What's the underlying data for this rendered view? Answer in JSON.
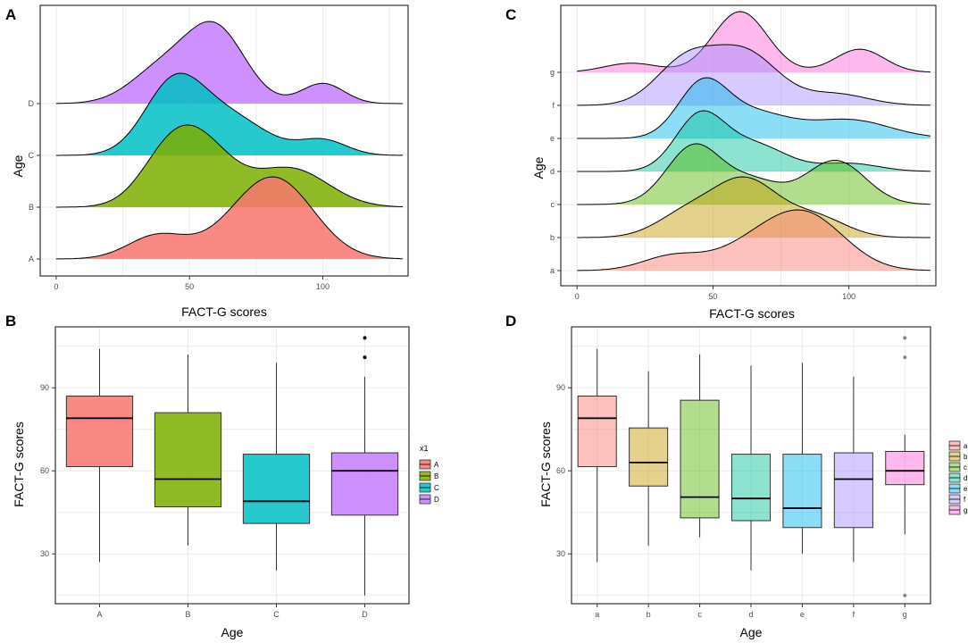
{
  "chart_data": [
    {
      "panel": "A",
      "type": "ridgeline",
      "xlabel": "FACT-G scores",
      "ylabel": "Age",
      "xlim": [
        -6,
        132
      ],
      "xticks": [
        0,
        50,
        100
      ],
      "groups": [
        {
          "name": "A",
          "color": "#F8766D",
          "peaks": [
            [
              38,
              0.35,
              11
            ],
            [
              84,
              1.0,
              14
            ],
            [
              70,
              0.35,
              14
            ]
          ]
        },
        {
          "name": "B",
          "color": "#7CAE00",
          "peaks": [
            [
              52,
              1.0,
              13
            ],
            [
              88,
              0.55,
              14
            ],
            [
              40,
              0.3,
              10
            ]
          ]
        },
        {
          "name": "C",
          "color": "#00BFC4",
          "peaks": [
            [
              44,
              1.0,
              11
            ],
            [
              65,
              0.55,
              14
            ],
            [
              100,
              0.22,
              9
            ]
          ]
        },
        {
          "name": "D",
          "color": "#C77CFF",
          "peaks": [
            [
              60,
              1.0,
              11
            ],
            [
              40,
              0.48,
              12
            ],
            [
              100,
              0.28,
              8
            ]
          ]
        }
      ]
    },
    {
      "panel": "C",
      "type": "ridgeline",
      "xlabel": "FACT-G scores",
      "ylabel": "Age",
      "xlim": [
        -6,
        132
      ],
      "xticks": [
        0,
        50,
        100
      ],
      "groups": [
        {
          "name": "a",
          "color": "#F8766D",
          "peaks": [
            [
              35,
              0.28,
              11
            ],
            [
              85,
              1.0,
              14
            ],
            [
              65,
              0.45,
              14
            ]
          ]
        },
        {
          "name": "b",
          "color": "#C49A00",
          "peaks": [
            [
              62,
              1.0,
              12
            ],
            [
              40,
              0.4,
              11
            ],
            [
              88,
              0.35,
              11
            ]
          ]
        },
        {
          "name": "c",
          "color": "#53B400",
          "peaks": [
            [
              43,
              1.0,
              10
            ],
            [
              95,
              0.75,
              11
            ],
            [
              65,
              0.38,
              10
            ]
          ]
        },
        {
          "name": "d",
          "color": "#00C094",
          "peaks": [
            [
              45,
              1.0,
              9
            ],
            [
              65,
              0.5,
              12
            ],
            [
              100,
              0.15,
              11
            ]
          ]
        },
        {
          "name": "e",
          "color": "#00B6EB",
          "peaks": [
            [
              46,
              1.0,
              9
            ],
            [
              65,
              0.48,
              13
            ],
            [
              100,
              0.36,
              15
            ]
          ]
        },
        {
          "name": "f",
          "color": "#A58AFF",
          "peaks": [
            [
              40,
              0.85,
              11
            ],
            [
              62,
              1.0,
              12
            ],
            [
              95,
              0.22,
              12
            ]
          ]
        },
        {
          "name": "g",
          "color": "#FB61D7",
          "peaks": [
            [
              60,
              1.0,
              10
            ],
            [
              104,
              0.38,
              9
            ],
            [
              20,
              0.15,
              10
            ]
          ]
        }
      ]
    },
    {
      "panel": "B",
      "type": "box",
      "xlabel": "Age",
      "ylabel": "FACT-G scores",
      "ylim": [
        12,
        112
      ],
      "yticks": [
        30,
        60,
        90
      ],
      "categories": [
        "A",
        "B",
        "C",
        "D"
      ],
      "legend": {
        "title": "x1",
        "entries": [
          "A",
          "B",
          "C",
          "D"
        ]
      },
      "boxes": [
        {
          "name": "A",
          "color": "#F8766D",
          "min": 27,
          "q1": 61.5,
          "median": 79,
          "q3": 87,
          "max": 104,
          "outliers": []
        },
        {
          "name": "B",
          "color": "#7CAE00",
          "min": 33,
          "q1": 47,
          "median": 57,
          "q3": 81,
          "max": 102,
          "outliers": []
        },
        {
          "name": "C",
          "color": "#00BFC4",
          "min": 24,
          "q1": 41,
          "median": 49,
          "q3": 66,
          "max": 99,
          "outliers": []
        },
        {
          "name": "D",
          "color": "#C77CFF",
          "min": 15,
          "q1": 44,
          "median": 60,
          "q3": 66.5,
          "max": 94,
          "outliers": [
            101,
            108
          ]
        }
      ]
    },
    {
      "panel": "D",
      "type": "box",
      "xlabel": "Age",
      "ylabel": "FACT-G scores",
      "ylim": [
        12,
        112
      ],
      "yticks": [
        30,
        60,
        90
      ],
      "categories": [
        "a",
        "b",
        "c",
        "d",
        "e",
        "f",
        "g"
      ],
      "legend": {
        "title": "",
        "entries": [
          "a",
          "b",
          "c",
          "d",
          "e",
          "f",
          "g"
        ]
      },
      "boxes": [
        {
          "name": "a",
          "color": "#F8766D",
          "min": 27,
          "q1": 61.5,
          "median": 79,
          "q3": 87,
          "max": 104,
          "outliers": []
        },
        {
          "name": "b",
          "color": "#C49A00",
          "min": 33,
          "q1": 54.5,
          "median": 63,
          "q3": 75.5,
          "max": 96,
          "outliers": []
        },
        {
          "name": "c",
          "color": "#53B400",
          "min": 36,
          "q1": 43,
          "median": 50.5,
          "q3": 85.5,
          "max": 102,
          "outliers": []
        },
        {
          "name": "d",
          "color": "#00C094",
          "min": 24,
          "q1": 42,
          "median": 50,
          "q3": 66,
          "max": 98,
          "outliers": []
        },
        {
          "name": "e",
          "color": "#00B6EB",
          "min": 30,
          "q1": 39.5,
          "median": 46.5,
          "q3": 66,
          "max": 99,
          "outliers": []
        },
        {
          "name": "f",
          "color": "#A58AFF",
          "min": 27,
          "q1": 39.5,
          "median": 57,
          "q3": 66.5,
          "max": 94,
          "outliers": []
        },
        {
          "name": "g",
          "color": "#FB61D7",
          "min": 37,
          "q1": 55,
          "median": 60,
          "q3": 67,
          "max": 73,
          "outliers": [
            101,
            108,
            15
          ]
        }
      ]
    }
  ]
}
